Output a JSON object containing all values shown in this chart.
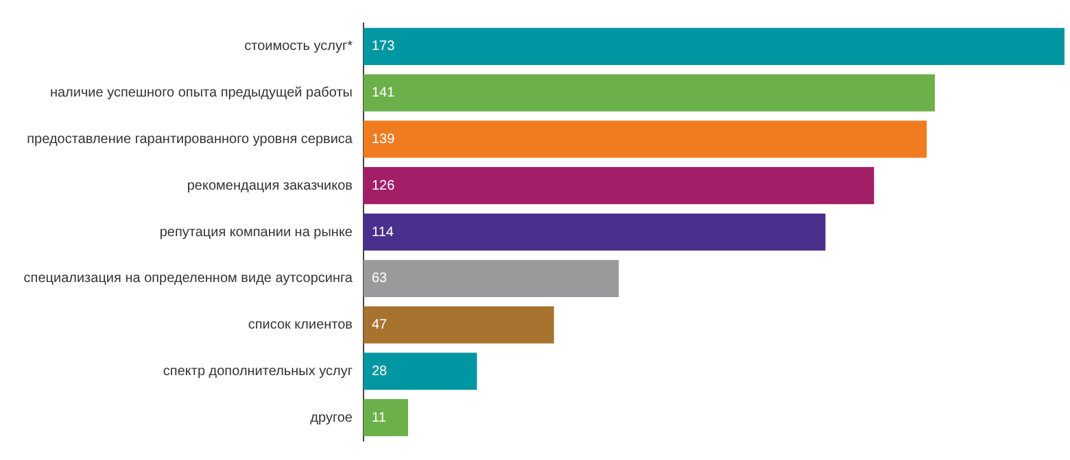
{
  "chart_data": {
    "type": "bar",
    "orientation": "horizontal",
    "data_labels": true,
    "grid": false,
    "legend": false,
    "categories": [
      "стоимость услуг*",
      "наличие успешного опыта предыдущей работы",
      "предоставление гарантированного уровня сервиса",
      "рекомендация заказчиков",
      "репутация компании на рынке",
      "специализация на определенном виде аутсорсинга",
      "список клиентов",
      "спектр дополнительных услуг",
      "другое"
    ],
    "values": [
      173,
      141,
      139,
      126,
      114,
      63,
      47,
      28,
      11
    ],
    "colors": [
      "#0097a3",
      "#6cb04a",
      "#f07c22",
      "#a21f68",
      "#4a2f8c",
      "#9a9a9d",
      "#a8732f",
      "#0097a3",
      "#6cb04a"
    ]
  }
}
